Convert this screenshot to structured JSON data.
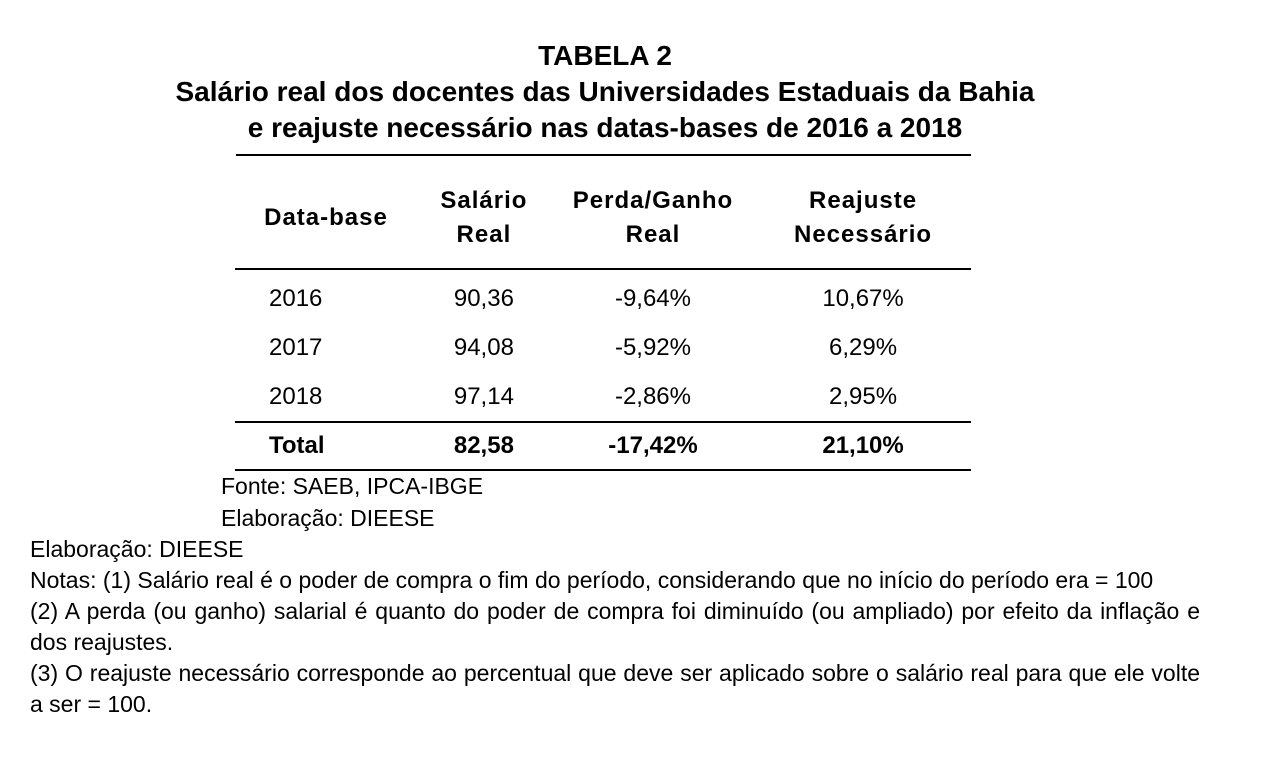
{
  "title": {
    "line1": "TABELA 2",
    "line2": "Salário real dos docentes das Universidades Estaduais da Bahia",
    "line3": "e reajuste necessário nas datas-bases de 2016 a 2018"
  },
  "table": {
    "headers": {
      "col1": "Data-base",
      "col2_a": "Salário",
      "col2_b": "Real",
      "col3_a": "Perda/Ganho",
      "col3_b": "Real",
      "col4_a": "Reajuste",
      "col4_b": "Necessário"
    },
    "rows": [
      {
        "year": "2016",
        "salario": "90,36",
        "perda": "-9,64%",
        "reajuste": "10,67%"
      },
      {
        "year": "2017",
        "salario": "94,08",
        "perda": "-5,92%",
        "reajuste": "6,29%"
      },
      {
        "year": "2018",
        "salario": "97,14",
        "perda": "-2,86%",
        "reajuste": "2,95%"
      }
    ],
    "total": {
      "label": "Total",
      "salario": "82,58",
      "perda": "-17,42%",
      "reajuste": "21,10%"
    }
  },
  "source": {
    "fonte": "Fonte: SAEB, IPCA-IBGE",
    "elaboracao": "Elaboração: DIEESE"
  },
  "notes": {
    "elaboracao": "Elaboração: DIEESE",
    "note1": "Notas: (1) Salário real é o poder de compra o fim do período, considerando que no início do período era = 100",
    "note2": "(2) A perda (ou ganho) salarial é quanto do poder de compra foi diminuído (ou ampliado) por efeito da inflação e dos reajustes.",
    "note3": "(3) O reajuste necessário corresponde ao percentual que deve ser aplicado sobre o salário real para que ele volte a ser = 100."
  }
}
